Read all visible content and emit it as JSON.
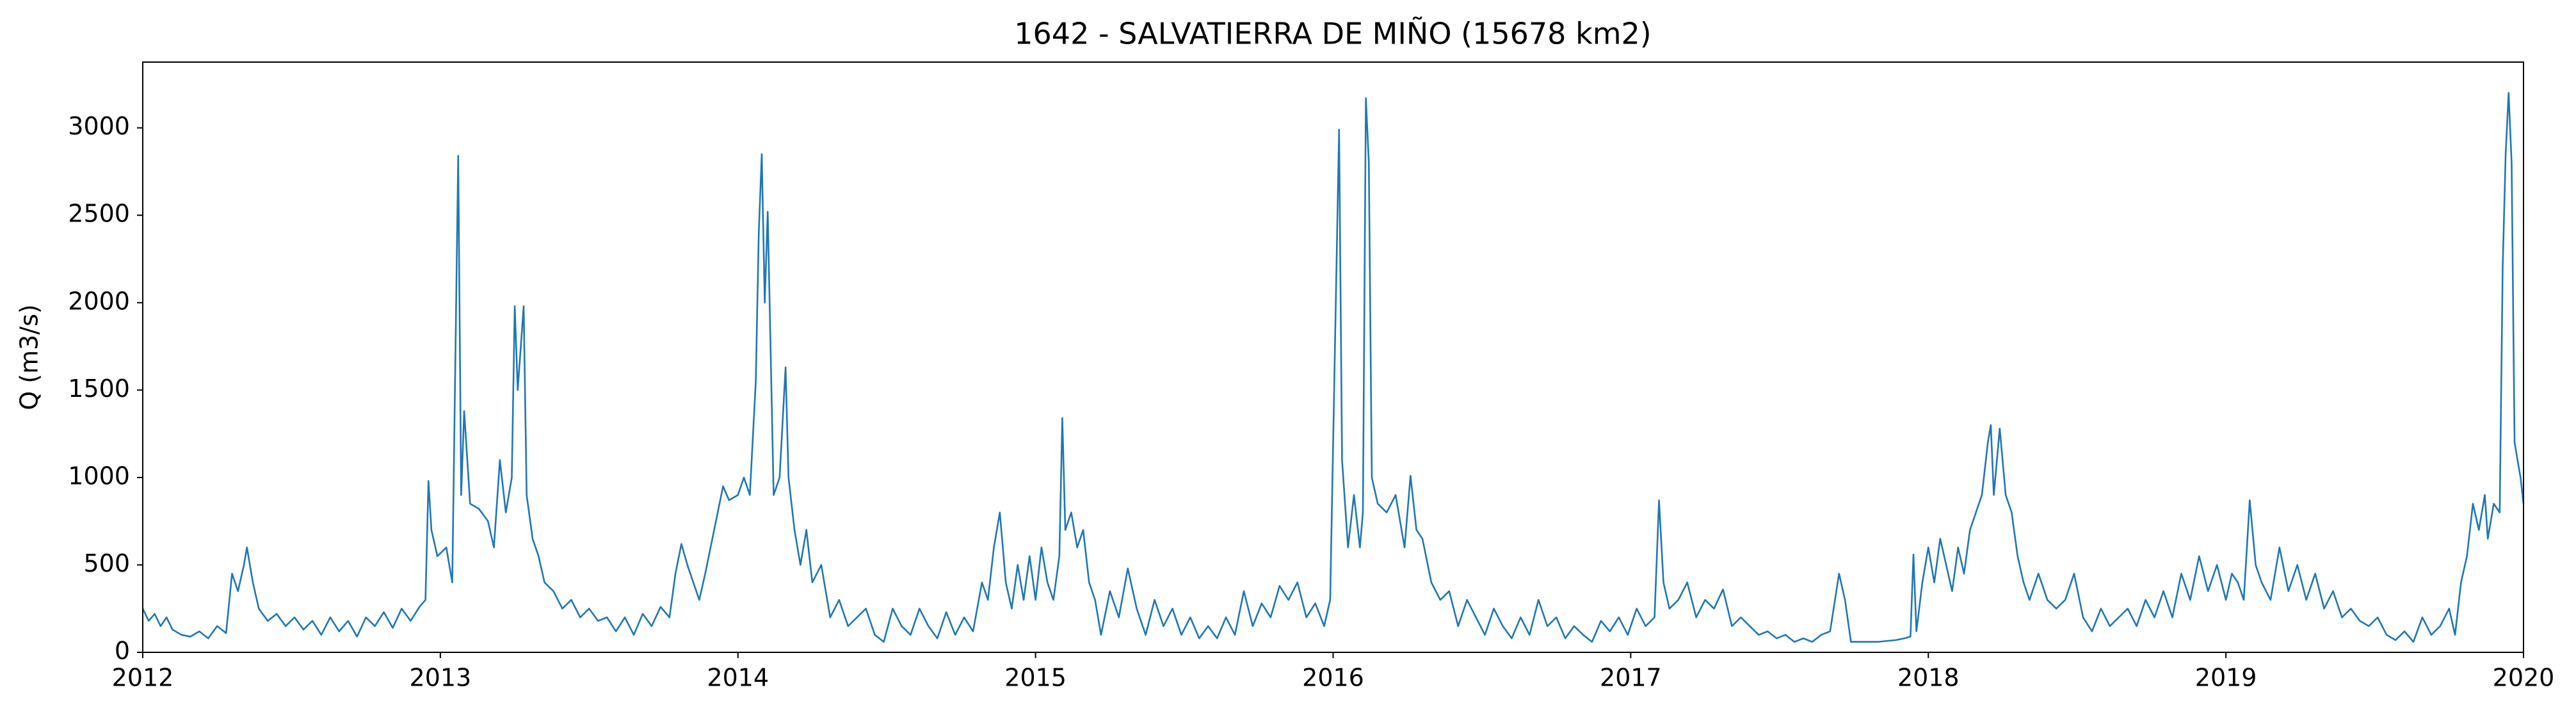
{
  "chart_data": {
    "type": "line",
    "title": "1642 - SALVATIERRA DE MIÑO (15678 km2)",
    "y_label": "Q (m3/s)",
    "x": [
      2012.0,
      2012.02,
      2012.04,
      2012.06,
      2012.08,
      2012.1,
      2012.13,
      2012.16,
      2012.19,
      2012.22,
      2012.25,
      2012.28,
      2012.3,
      2012.32,
      2012.34,
      2012.35,
      2012.37,
      2012.39,
      2012.42,
      2012.45,
      2012.48,
      2012.51,
      2012.54,
      2012.57,
      2012.6,
      2012.63,
      2012.66,
      2012.69,
      2012.72,
      2012.75,
      2012.78,
      2012.81,
      2012.84,
      2012.87,
      2012.9,
      2012.93,
      2012.95,
      2012.96,
      2012.97,
      2012.99,
      2013.02,
      2013.04,
      2013.06,
      2013.07,
      2013.08,
      2013.1,
      2013.13,
      2013.16,
      2013.18,
      2013.2,
      2013.22,
      2013.24,
      2013.25,
      2013.26,
      2013.28,
      2013.29,
      2013.31,
      2013.33,
      2013.35,
      2013.38,
      2013.41,
      2013.44,
      2013.47,
      2013.5,
      2013.53,
      2013.56,
      2013.59,
      2013.62,
      2013.65,
      2013.68,
      2013.71,
      2013.74,
      2013.77,
      2013.79,
      2013.81,
      2013.83,
      2013.85,
      2013.87,
      2013.89,
      2013.92,
      2013.95,
      2013.97,
      2014.0,
      2014.02,
      2014.04,
      2014.06,
      2014.07,
      2014.08,
      2014.09,
      2014.1,
      2014.12,
      2014.14,
      2014.16,
      2014.17,
      2014.19,
      2014.21,
      2014.23,
      2014.25,
      2014.28,
      2014.31,
      2014.34,
      2014.37,
      2014.4,
      2014.43,
      2014.46,
      2014.49,
      2014.52,
      2014.55,
      2014.58,
      2014.61,
      2014.64,
      2014.67,
      2014.7,
      2014.73,
      2014.76,
      2014.79,
      2014.82,
      2014.84,
      2014.86,
      2014.88,
      2014.9,
      2014.92,
      2014.94,
      2014.96,
      2014.98,
      2015.0,
      2015.02,
      2015.04,
      2015.06,
      2015.08,
      2015.09,
      2015.1,
      2015.12,
      2015.14,
      2015.16,
      2015.18,
      2015.2,
      2015.22,
      2015.25,
      2015.28,
      2015.31,
      2015.34,
      2015.37,
      2015.4,
      2015.43,
      2015.46,
      2015.49,
      2015.52,
      2015.55,
      2015.58,
      2015.61,
      2015.64,
      2015.67,
      2015.7,
      2015.73,
      2015.76,
      2015.79,
      2015.82,
      2015.85,
      2015.88,
      2015.91,
      2015.94,
      2015.97,
      2015.99,
      2016.02,
      2016.03,
      2016.05,
      2016.07,
      2016.09,
      2016.1,
      2016.11,
      2016.12,
      2016.13,
      2016.15,
      2016.18,
      2016.21,
      2016.24,
      2016.26,
      2016.28,
      2016.3,
      2016.33,
      2016.36,
      2016.39,
      2016.42,
      2016.45,
      2016.48,
      2016.51,
      2016.54,
      2016.57,
      2016.6,
      2016.63,
      2016.66,
      2016.69,
      2016.72,
      2016.75,
      2016.78,
      2016.81,
      2016.84,
      2016.87,
      2016.9,
      2016.93,
      2016.96,
      2016.99,
      2017.02,
      2017.05,
      2017.08,
      2017.095,
      2017.11,
      2017.13,
      2017.16,
      2017.19,
      2017.22,
      2017.25,
      2017.28,
      2017.31,
      2017.34,
      2017.37,
      2017.4,
      2017.43,
      2017.46,
      2017.49,
      2017.52,
      2017.55,
      2017.58,
      2017.61,
      2017.64,
      2017.67,
      2017.7,
      2017.72,
      2017.74,
      2017.77,
      2017.8,
      2017.83,
      2017.86,
      2017.89,
      2017.92,
      2017.94,
      2017.95,
      2017.96,
      2017.98,
      2018.0,
      2018.02,
      2018.04,
      2018.06,
      2018.08,
      2018.1,
      2018.12,
      2018.14,
      2018.16,
      2018.18,
      2018.2,
      2018.21,
      2018.22,
      2018.24,
      2018.26,
      2018.28,
      2018.3,
      2018.32,
      2018.34,
      2018.37,
      2018.4,
      2018.43,
      2018.46,
      2018.49,
      2018.52,
      2018.55,
      2018.58,
      2018.61,
      2018.64,
      2018.67,
      2018.7,
      2018.73,
      2018.76,
      2018.79,
      2018.82,
      2018.85,
      2018.88,
      2018.91,
      2018.94,
      2018.97,
      2019.0,
      2019.02,
      2019.04,
      2019.06,
      2019.08,
      2019.1,
      2019.12,
      2019.15,
      2019.18,
      2019.21,
      2019.24,
      2019.27,
      2019.3,
      2019.33,
      2019.36,
      2019.39,
      2019.42,
      2019.45,
      2019.48,
      2019.51,
      2019.54,
      2019.57,
      2019.6,
      2019.63,
      2019.66,
      2019.69,
      2019.72,
      2019.75,
      2019.77,
      2019.79,
      2019.81,
      2019.83,
      2019.85,
      2019.87,
      2019.88,
      2019.9,
      2019.92,
      2019.93,
      2019.94,
      2019.95,
      2019.96,
      2019.97,
      2019.99,
      2020.0
    ],
    "values": [
      250,
      180,
      220,
      150,
      200,
      130,
      100,
      90,
      120,
      80,
      150,
      110,
      450,
      350,
      500,
      600,
      400,
      250,
      180,
      220,
      150,
      200,
      130,
      180,
      100,
      200,
      120,
      180,
      90,
      200,
      150,
      230,
      140,
      250,
      180,
      260,
      300,
      980,
      700,
      550,
      600,
      400,
      2840,
      900,
      1380,
      850,
      820,
      750,
      600,
      1100,
      800,
      1000,
      1980,
      1500,
      1980,
      900,
      650,
      550,
      400,
      350,
      250,
      300,
      200,
      250,
      180,
      200,
      120,
      200,
      100,
      220,
      150,
      260,
      200,
      450,
      620,
      500,
      400,
      300,
      450,
      700,
      950,
      870,
      900,
      1000,
      900,
      1550,
      2400,
      2850,
      2000,
      2520,
      900,
      1000,
      1630,
      1000,
      700,
      500,
      700,
      400,
      500,
      200,
      300,
      150,
      200,
      250,
      100,
      60,
      250,
      150,
      100,
      250,
      150,
      80,
      230,
      100,
      200,
      120,
      400,
      300,
      600,
      800,
      400,
      250,
      500,
      300,
      550,
      300,
      600,
      400,
      300,
      550,
      1340,
      700,
      800,
      600,
      700,
      400,
      300,
      100,
      350,
      200,
      480,
      250,
      100,
      300,
      150,
      250,
      100,
      200,
      80,
      150,
      80,
      200,
      100,
      350,
      150,
      280,
      200,
      380,
      300,
      400,
      200,
      280,
      150,
      300,
      2990,
      1100,
      600,
      900,
      600,
      800,
      3170,
      2800,
      1000,
      850,
      800,
      900,
      600,
      1010,
      700,
      650,
      400,
      300,
      350,
      150,
      300,
      200,
      100,
      250,
      150,
      80,
      200,
      100,
      300,
      150,
      200,
      80,
      150,
      100,
      60,
      180,
      120,
      200,
      100,
      250,
      150,
      200,
      870,
      400,
      250,
      300,
      400,
      200,
      300,
      250,
      360,
      150,
      200,
      150,
      100,
      120,
      80,
      100,
      60,
      80,
      60,
      100,
      120,
      450,
      300,
      60,
      60,
      60,
      60,
      65,
      70,
      80,
      90,
      560,
      120,
      400,
      600,
      400,
      650,
      500,
      350,
      600,
      450,
      700,
      800,
      900,
      1200,
      1300,
      900,
      1280,
      900,
      800,
      550,
      400,
      300,
      450,
      300,
      250,
      300,
      450,
      200,
      120,
      250,
      150,
      200,
      250,
      150,
      300,
      200,
      350,
      200,
      450,
      300,
      550,
      350,
      500,
      300,
      450,
      400,
      300,
      870,
      500,
      400,
      300,
      600,
      350,
      500,
      300,
      450,
      250,
      350,
      200,
      250,
      180,
      150,
      200,
      100,
      70,
      120,
      60,
      200,
      100,
      150,
      250,
      100,
      400,
      550,
      850,
      700,
      900,
      650,
      850,
      800,
      2200,
      2850,
      3200,
      2800,
      1200,
      1000,
      850
    ],
    "color": "#1f77b4",
    "xlim": [
      2012,
      2020
    ],
    "xticks": [
      2012,
      2013,
      2014,
      2015,
      2016,
      2017,
      2018,
      2019,
      2020
    ],
    "ylim": [
      0,
      3376
    ],
    "yticks": [
      0,
      500,
      1000,
      1500,
      2000,
      2500,
      3000
    ]
  }
}
